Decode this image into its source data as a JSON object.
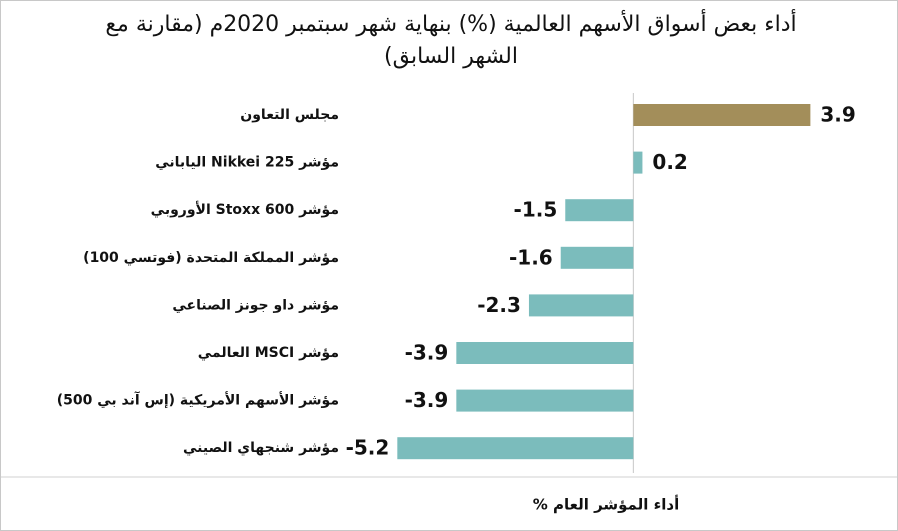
{
  "chart_data": {
    "type": "hbar",
    "title": "أداء بعض أسواق الأسهم العالمية (%) بنهاية شهر سبتمبر 2020م (مقارنة مع الشهر السابق)",
    "categories": [
      "مجلس التعاون",
      "مؤشر Nikkei 225 الياباني",
      "مؤشر Stoxx 600 الأوروبي",
      "مؤشر المملكة المتحدة (فوتسي 100)",
      "مؤشر داو جونز الصناعي",
      "مؤشر MSCI العالمي",
      "مؤشر الأسهم الأمريكية (إس آند بي 500)",
      "مؤشر شنجهاي الصيني"
    ],
    "values": [
      3.9,
      0.2,
      -1.5,
      -1.6,
      -2.3,
      -3.9,
      -3.9,
      -5.2
    ],
    "colors": [
      "#a38e5a",
      "#7bbcbc",
      "#7bbcbc",
      "#7bbcbc",
      "#7bbcbc",
      "#7bbcbc",
      "#7bbcbc",
      "#7bbcbc"
    ],
    "xlabel": "أداء المؤشر العام %",
    "xlim": [
      -6,
      5.5
    ]
  }
}
